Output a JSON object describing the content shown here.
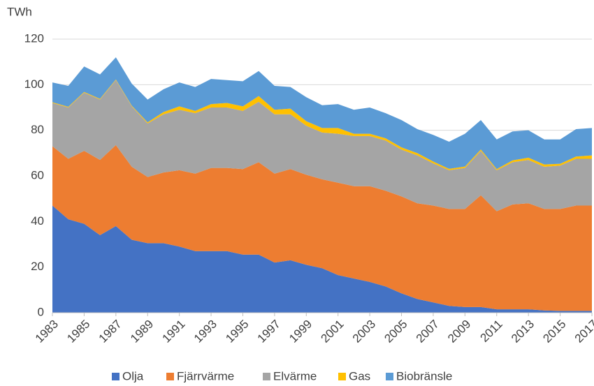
{
  "chart_data": {
    "type": "stacked_area",
    "y_label": "TWh",
    "x": [
      1983,
      1984,
      1985,
      1986,
      1987,
      1988,
      1989,
      1990,
      1991,
      1992,
      1993,
      1994,
      1995,
      1996,
      1997,
      1998,
      1999,
      2000,
      2001,
      2002,
      2003,
      2004,
      2005,
      2006,
      2007,
      2008,
      2009,
      2010,
      2011,
      2012,
      2013,
      2014,
      2015,
      2016,
      2017
    ],
    "xlim": [
      1983,
      2017
    ],
    "xticks": [
      1983,
      1985,
      1987,
      1989,
      1991,
      1993,
      1995,
      1997,
      1999,
      2001,
      2003,
      2005,
      2007,
      2009,
      2011,
      2013,
      2015,
      2017
    ],
    "ylim": [
      0,
      120
    ],
    "yticks": [
      0,
      20,
      40,
      60,
      80,
      100,
      120
    ],
    "grid": true,
    "legend": "bottom",
    "series": [
      {
        "name": "Olja",
        "color": "#4472c4",
        "values": [
          47,
          41,
          39,
          34,
          38,
          32,
          30.5,
          30.5,
          29,
          27,
          27,
          27,
          25.5,
          25.5,
          22,
          23,
          21,
          19.5,
          16.5,
          15,
          13.5,
          11.5,
          8.5,
          6,
          4.5,
          3,
          2.5,
          2.5,
          1.5,
          1.5,
          1.5,
          1,
          0.8,
          0.8,
          0.8
        ]
      },
      {
        "name": "Fjärrvärme",
        "color": "#ed7d31",
        "values": [
          26,
          26.5,
          32,
          33,
          35.5,
          32,
          29,
          31,
          33.5,
          34,
          36.5,
          36.5,
          37.5,
          40.5,
          39,
          40,
          39.5,
          39,
          40.5,
          40.5,
          42,
          42,
          42.5,
          42,
          42.5,
          42.5,
          43,
          49,
          43,
          46,
          46.5,
          44.5,
          44.7,
          46.2,
          46.2
        ]
      },
      {
        "name": "Elvärme",
        "color": "#a5a5a5",
        "values": [
          19,
          22.5,
          25.5,
          26.5,
          28.5,
          26.5,
          23.5,
          25.5,
          26.5,
          26.5,
          26.5,
          26.5,
          25.5,
          26.5,
          26,
          24,
          21.5,
          20.5,
          21.5,
          22,
          22,
          22,
          20.5,
          21,
          18.5,
          17,
          18,
          19.5,
          18,
          18.5,
          19,
          18.5,
          19,
          20.5,
          20.5
        ]
      },
      {
        "name": "Gas",
        "color": "#ffc000",
        "values": [
          0.3,
          0.3,
          0.3,
          0.3,
          0.3,
          0.3,
          0.5,
          1,
          1.5,
          1,
          1.5,
          2,
          2,
          2.5,
          2,
          2.5,
          2,
          2,
          2.5,
          1,
          1,
          1,
          1,
          1,
          0.8,
          0.6,
          0.6,
          0.6,
          0.5,
          0.8,
          1,
          1,
          0.8,
          1,
          1.5
        ]
      },
      {
        "name": "Biobränsle",
        "color": "#5b9bd5",
        "values": [
          8.7,
          9.2,
          11.2,
          10.7,
          9.7,
          9.7,
          10,
          10,
          10.5,
          10.5,
          11,
          10,
          11,
          11,
          10.5,
          9.5,
          10.5,
          10,
          10.5,
          10.5,
          11.5,
          11,
          12,
          10.5,
          11.7,
          11.9,
          14.4,
          12.9,
          13,
          12.7,
          12,
          11,
          10.7,
          12,
          12
        ]
      }
    ]
  }
}
